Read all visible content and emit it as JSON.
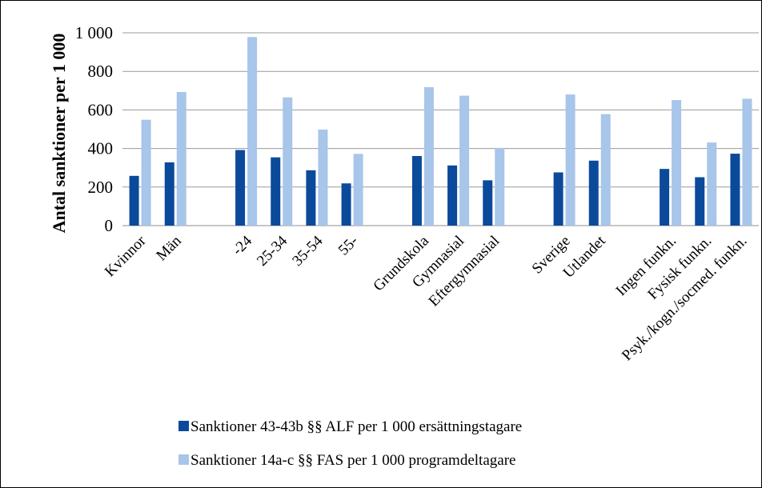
{
  "chart_data": {
    "type": "bar",
    "title": "",
    "xlabel": "",
    "ylabel": "Antal sanktioner per 1 000",
    "ylim": [
      0,
      1000
    ],
    "yticks": [
      0,
      200,
      400,
      600,
      800,
      1000
    ],
    "ytick_labels": [
      "0",
      "200",
      "400",
      "600",
      "800",
      "1 000"
    ],
    "grid": true,
    "legend_position": "bottom",
    "categories": [
      "Kvinnor",
      "Män",
      "",
      "-24",
      "25-34",
      "35-54",
      "55-",
      "",
      "Grundskola",
      "Gymnasial",
      "Eftergymnasial",
      "",
      "Sverige",
      "Utlandet",
      "",
      "Ingen funkn.",
      "Fysisk funkn.",
      "Psyk./kogn./socmed. funkn."
    ],
    "series": [
      {
        "name": "Sanktioner 43-43b §§ ALF per 1 000 ersättningstagare",
        "color": "#0b4a9b",
        "values": [
          258,
          328,
          null,
          392,
          354,
          287,
          219,
          null,
          361,
          312,
          235,
          null,
          276,
          337,
          null,
          294,
          251,
          373
        ]
      },
      {
        "name": "Sanktioner 14a-c §§ FAS per 1 000 programdeltagare",
        "color": "#a8c5ea",
        "values": [
          549,
          693,
          null,
          978,
          665,
          498,
          372,
          null,
          718,
          674,
          403,
          null,
          680,
          578,
          null,
          651,
          431,
          658
        ]
      }
    ]
  }
}
